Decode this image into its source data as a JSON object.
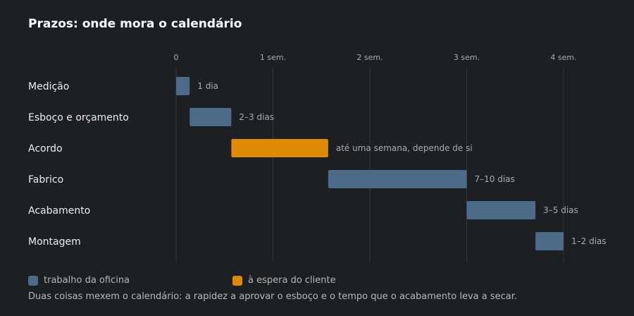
{
  "colors": {
    "workshop": "#4e6a89",
    "client": "#df8a06",
    "grid": "#34383c"
  },
  "chart_data": {
    "type": "bar",
    "orientation": "horizontal-gantt",
    "title": "Prazos: onde mora o calendário",
    "xlabel": "",
    "ylabel": "",
    "x_unit": "semanas",
    "xlim": [
      0,
      4
    ],
    "ticks": [
      {
        "value": 0,
        "label": "0"
      },
      {
        "value": 1,
        "label": "1 sem."
      },
      {
        "value": 2,
        "label": "2 sem."
      },
      {
        "value": 3,
        "label": "3 sem."
      },
      {
        "value": 4,
        "label": "4 sem."
      }
    ],
    "grid": true,
    "legend_position": "bottom-left",
    "series": [
      {
        "name": "trabalho da oficina",
        "key": "workshop"
      },
      {
        "name": "à espera do cliente",
        "key": "client"
      }
    ],
    "tasks": [
      {
        "name": "Medição",
        "start": 0,
        "end": 0.14,
        "label": "1 dia",
        "series": "workshop"
      },
      {
        "name": "Esboço e orçamento",
        "start": 0.14,
        "end": 0.57,
        "label": "2–3 dias",
        "series": "workshop"
      },
      {
        "name": "Acordo",
        "start": 0.57,
        "end": 1.57,
        "label": "até uma semana, depende de si",
        "series": "client"
      },
      {
        "name": "Fabrico",
        "start": 1.57,
        "end": 3.0,
        "label": "7–10 dias",
        "series": "workshop"
      },
      {
        "name": "Acabamento",
        "start": 3.0,
        "end": 3.71,
        "label": "3–5 dias",
        "series": "workshop"
      },
      {
        "name": "Montagem",
        "start": 3.71,
        "end": 4.0,
        "label": "1–2 dias",
        "series": "workshop"
      }
    ]
  },
  "footnote": "Duas coisas mexem o calendário: a rapidez a aprovar o esboço e o tempo que o acabamento leva a secar."
}
